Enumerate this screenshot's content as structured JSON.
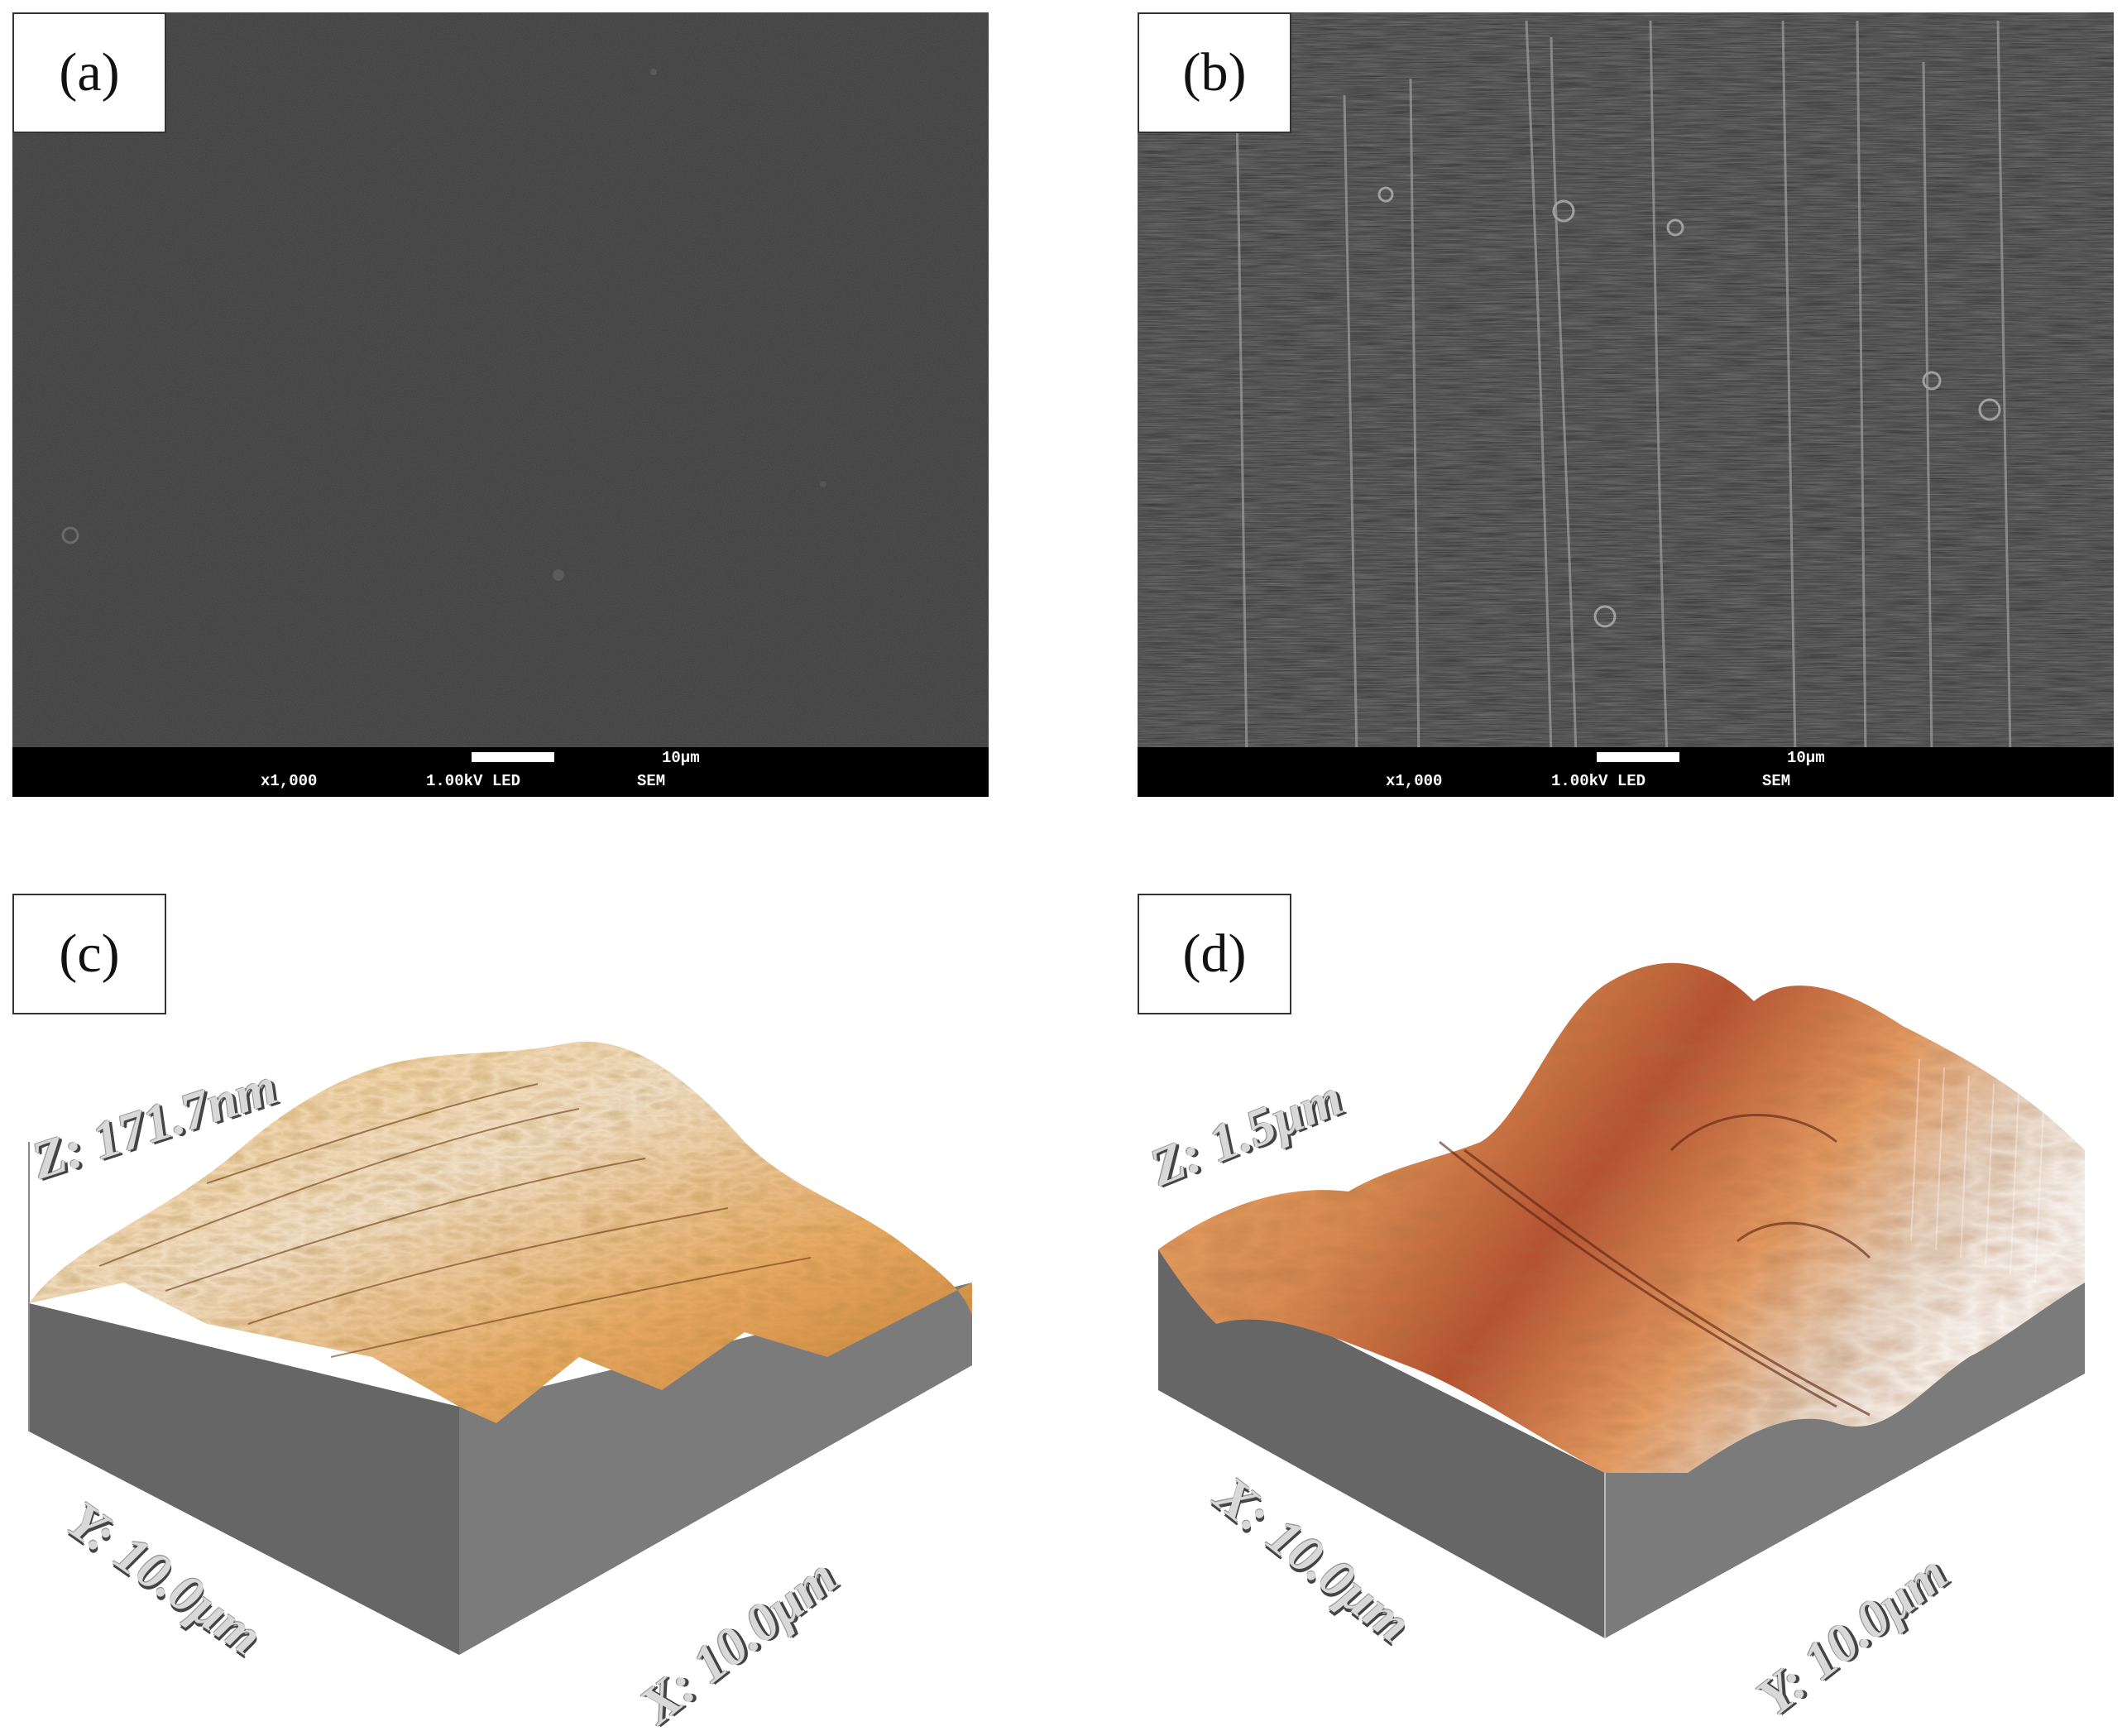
{
  "panels": {
    "a": {
      "label": "(a)",
      "sem_bar": {
        "scale": "10µm",
        "magnification": "x1,000",
        "voltage": "1.00kV LED",
        "mode": "SEM"
      }
    },
    "b": {
      "label": "(b)",
      "sem_bar": {
        "scale": "10µm",
        "magnification": "x1,000",
        "voltage": "1.00kV LED",
        "mode": "SEM"
      }
    },
    "c": {
      "label": "(c)",
      "z_label": "Z: 171.7nm",
      "y_label": "Y: 10.0µm",
      "x_label": "X: 10.0µm"
    },
    "d": {
      "label": "(d)",
      "z_label": "Z: 1.5µm",
      "x_label": "X: 10.0µm",
      "y_label": "Y: 10.0µm"
    }
  },
  "colors": {
    "sem_background": "#3a3a3a",
    "afm_c_surface": "#e8a860",
    "afm_d_surface": "#c8683a",
    "afm_base": "#6e6e6e"
  }
}
